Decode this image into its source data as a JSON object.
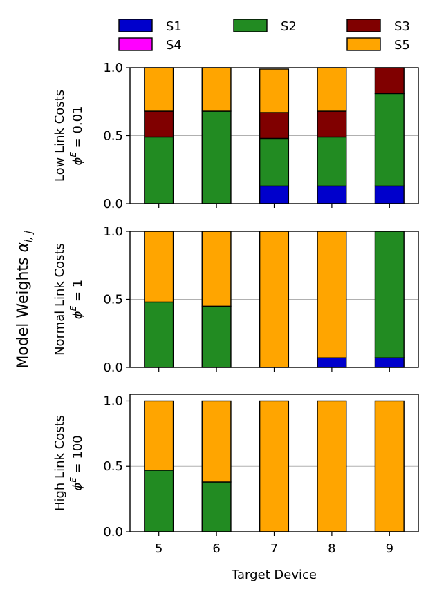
{
  "chart_data": {
    "type": "bar",
    "stacked": true,
    "legend": {
      "placement": "top",
      "entries": [
        {
          "key": "S1",
          "label": "S1",
          "color": "#0000cc"
        },
        {
          "key": "S2",
          "label": "S2",
          "color": "#228b22"
        },
        {
          "key": "S3",
          "label": "S3",
          "color": "#800000"
        },
        {
          "key": "S4",
          "label": "S4",
          "color": "#ff00ff"
        },
        {
          "key": "S5",
          "label": "S5",
          "color": "#ffa500"
        }
      ]
    },
    "ylabel": "Model Weights α_{i,j}",
    "ylabel_main": "Model Weights ",
    "ylabel_symbol": "α",
    "ylabel_subscript": "i, j",
    "xlabel": "Target Device",
    "categories": [
      "5",
      "6",
      "7",
      "8",
      "9"
    ],
    "yticks": [
      "0.0",
      "0.5",
      "1.0"
    ],
    "grid": "horizontal",
    "panels": [
      {
        "name": "low",
        "title_line1": "Low Link Costs",
        "phi_symbol": "ϕ",
        "phi_sup": "E",
        "phi_value": " = 0.01",
        "ylim": [
          0,
          1.0
        ],
        "series": [
          {
            "key": "S1",
            "values": [
              0.0,
              0.0,
              0.13,
              0.13,
              0.13
            ]
          },
          {
            "key": "S2",
            "values": [
              0.49,
              0.68,
              0.35,
              0.36,
              0.68
            ]
          },
          {
            "key": "S3",
            "values": [
              0.19,
              0.0,
              0.19,
              0.19,
              0.19
            ]
          },
          {
            "key": "S4",
            "values": [
              0.0,
              0.0,
              0.0,
              0.0,
              0.0
            ]
          },
          {
            "key": "S5",
            "values": [
              0.32,
              0.32,
              0.32,
              0.32,
              0.0
            ]
          }
        ]
      },
      {
        "name": "normal",
        "title_line1": "Normal Link Costs",
        "phi_symbol": "ϕ",
        "phi_sup": "E",
        "phi_value": " = 1",
        "ylim": [
          0,
          1.0
        ],
        "series": [
          {
            "key": "S1",
            "values": [
              0.0,
              0.0,
              0.0,
              0.07,
              0.07
            ]
          },
          {
            "key": "S2",
            "values": [
              0.48,
              0.45,
              0.0,
              0.0,
              0.93
            ]
          },
          {
            "key": "S3",
            "values": [
              0.0,
              0.0,
              0.0,
              0.0,
              0.0
            ]
          },
          {
            "key": "S4",
            "values": [
              0.0,
              0.0,
              0.0,
              0.0,
              0.0
            ]
          },
          {
            "key": "S5",
            "values": [
              0.52,
              0.55,
              1.0,
              0.93,
              0.0
            ]
          }
        ]
      },
      {
        "name": "high",
        "title_line1": "High Link Costs",
        "phi_symbol": "ϕ",
        "phi_sup": "E",
        "phi_value": " = 100",
        "ylim": [
          0,
          1.05
        ],
        "series": [
          {
            "key": "S1",
            "values": [
              0.0,
              0.0,
              0.0,
              0.0,
              0.0
            ]
          },
          {
            "key": "S2",
            "values": [
              0.47,
              0.38,
              0.0,
              0.0,
              0.0
            ]
          },
          {
            "key": "S3",
            "values": [
              0.0,
              0.0,
              0.0,
              0.0,
              0.0
            ]
          },
          {
            "key": "S4",
            "values": [
              0.0,
              0.0,
              0.0,
              0.0,
              0.0
            ]
          },
          {
            "key": "S5",
            "values": [
              0.53,
              0.62,
              1.0,
              1.0,
              1.0
            ]
          }
        ]
      }
    ]
  }
}
